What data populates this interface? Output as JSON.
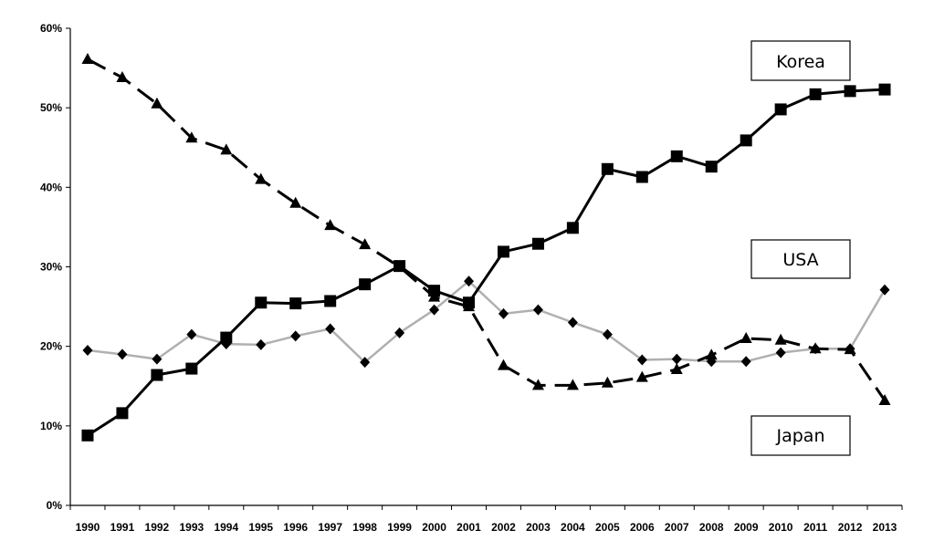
{
  "chart_data": {
    "type": "line",
    "title": "",
    "xlabel": "",
    "ylabel": "",
    "ylim": [
      0,
      60
    ],
    "y_ticks": [
      "0%",
      "10%",
      "20%",
      "30%",
      "40%",
      "50%",
      "60%"
    ],
    "grid": false,
    "categories": [
      "1990",
      "1991",
      "1992",
      "1993",
      "1994",
      "1995",
      "1996",
      "1997",
      "1998",
      "1999",
      "2000",
      "2001",
      "2002",
      "2003",
      "2004",
      "2005",
      "2006",
      "2007",
      "2008",
      "2009",
      "2010",
      "2011",
      "2012",
      "2013"
    ],
    "series": [
      {
        "name": "Korea",
        "marker": "square",
        "line_style": "solid",
        "color": "#000000",
        "values": [
          8.8,
          11.6,
          16.4,
          17.2,
          21.1,
          25.5,
          25.4,
          25.7,
          27.8,
          30.1,
          27.0,
          25.5,
          31.9,
          32.9,
          34.9,
          42.3,
          41.3,
          43.9,
          42.6,
          45.9,
          49.8,
          51.7,
          52.1,
          52.3
        ]
      },
      {
        "name": "USA",
        "marker": "diamond",
        "line_style": "solid",
        "color": "#b0b0b0",
        "values": [
          19.5,
          19.0,
          18.4,
          21.5,
          20.3,
          20.2,
          21.3,
          22.2,
          18.0,
          21.7,
          24.6,
          28.2,
          24.1,
          24.6,
          23.0,
          21.5,
          18.3,
          18.4,
          18.1,
          18.1,
          19.2,
          19.7,
          19.7,
          27.1
        ]
      },
      {
        "name": "Japan",
        "marker": "triangle",
        "line_style": "dashed",
        "color": "#000000",
        "values": [
          56.1,
          53.8,
          50.5,
          46.2,
          44.7,
          41.0,
          38.0,
          35.2,
          32.8,
          30.0,
          26.2,
          25.0,
          17.6,
          15.1,
          15.1,
          15.4,
          16.1,
          17.1,
          18.9,
          21.0,
          20.8,
          19.7,
          19.6,
          13.2
        ]
      }
    ],
    "labels": [
      "Korea",
      "USA",
      "Japan"
    ]
  }
}
